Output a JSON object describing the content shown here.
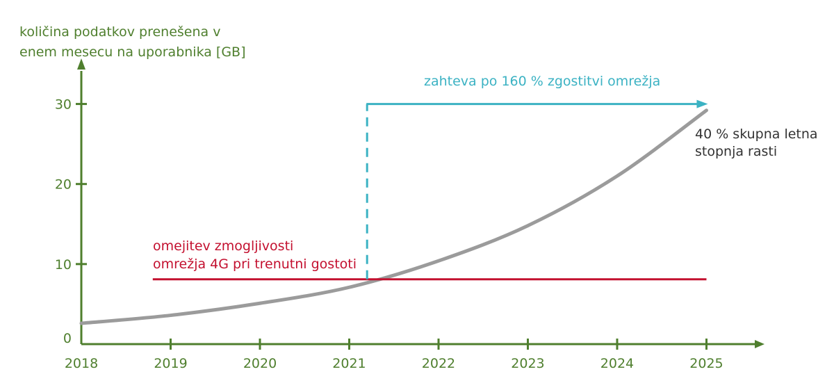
{
  "chart_data": {
    "type": "line",
    "ylabel_lines": [
      "količina podatkov prenešena v",
      "enem mesecu na uporabnika [GB]"
    ],
    "xlabel": "",
    "x_ticks": [
      "2018",
      "2019",
      "2020",
      "2021",
      "2022",
      "2023",
      "2024",
      "2025"
    ],
    "y_ticks": [
      "0",
      "10",
      "20",
      "30"
    ],
    "xlim": [
      2018,
      2025.65
    ],
    "ylim": [
      0,
      35
    ],
    "series": [
      {
        "x": [
          2018,
          2019,
          2020,
          2021,
          2022,
          2023,
          2024,
          2025
        ],
        "y": [
          2.6,
          3.6,
          5.1,
          7.1,
          10.4,
          14.8,
          21.0,
          29.2
        ],
        "color": "#9b9b9b"
      },
      {
        "x": [
          2018.8,
          2025
        ],
        "y": [
          8.1,
          8.1
        ],
        "color": "#c3102f"
      }
    ],
    "marker_line": {
      "x": 2021.2,
      "y_from": 8.1,
      "y_to": 30,
      "arrow_to_x": 2025,
      "color": "#3bb2c3"
    },
    "annotations": {
      "red": [
        "omejitev zmogljivosti",
        "omrežja 4G pri trenutni gostoti"
      ],
      "teal": "zahteva po 160 % zgostitvi omrežja",
      "gray": [
        "40 % skupna letna",
        "stopnja rasti"
      ]
    },
    "grid": false
  },
  "colors": {
    "axis": "#4f7f2e",
    "curve": "#9b9b9b",
    "limit": "#c3102f",
    "requirement": "#3bb2c3"
  }
}
